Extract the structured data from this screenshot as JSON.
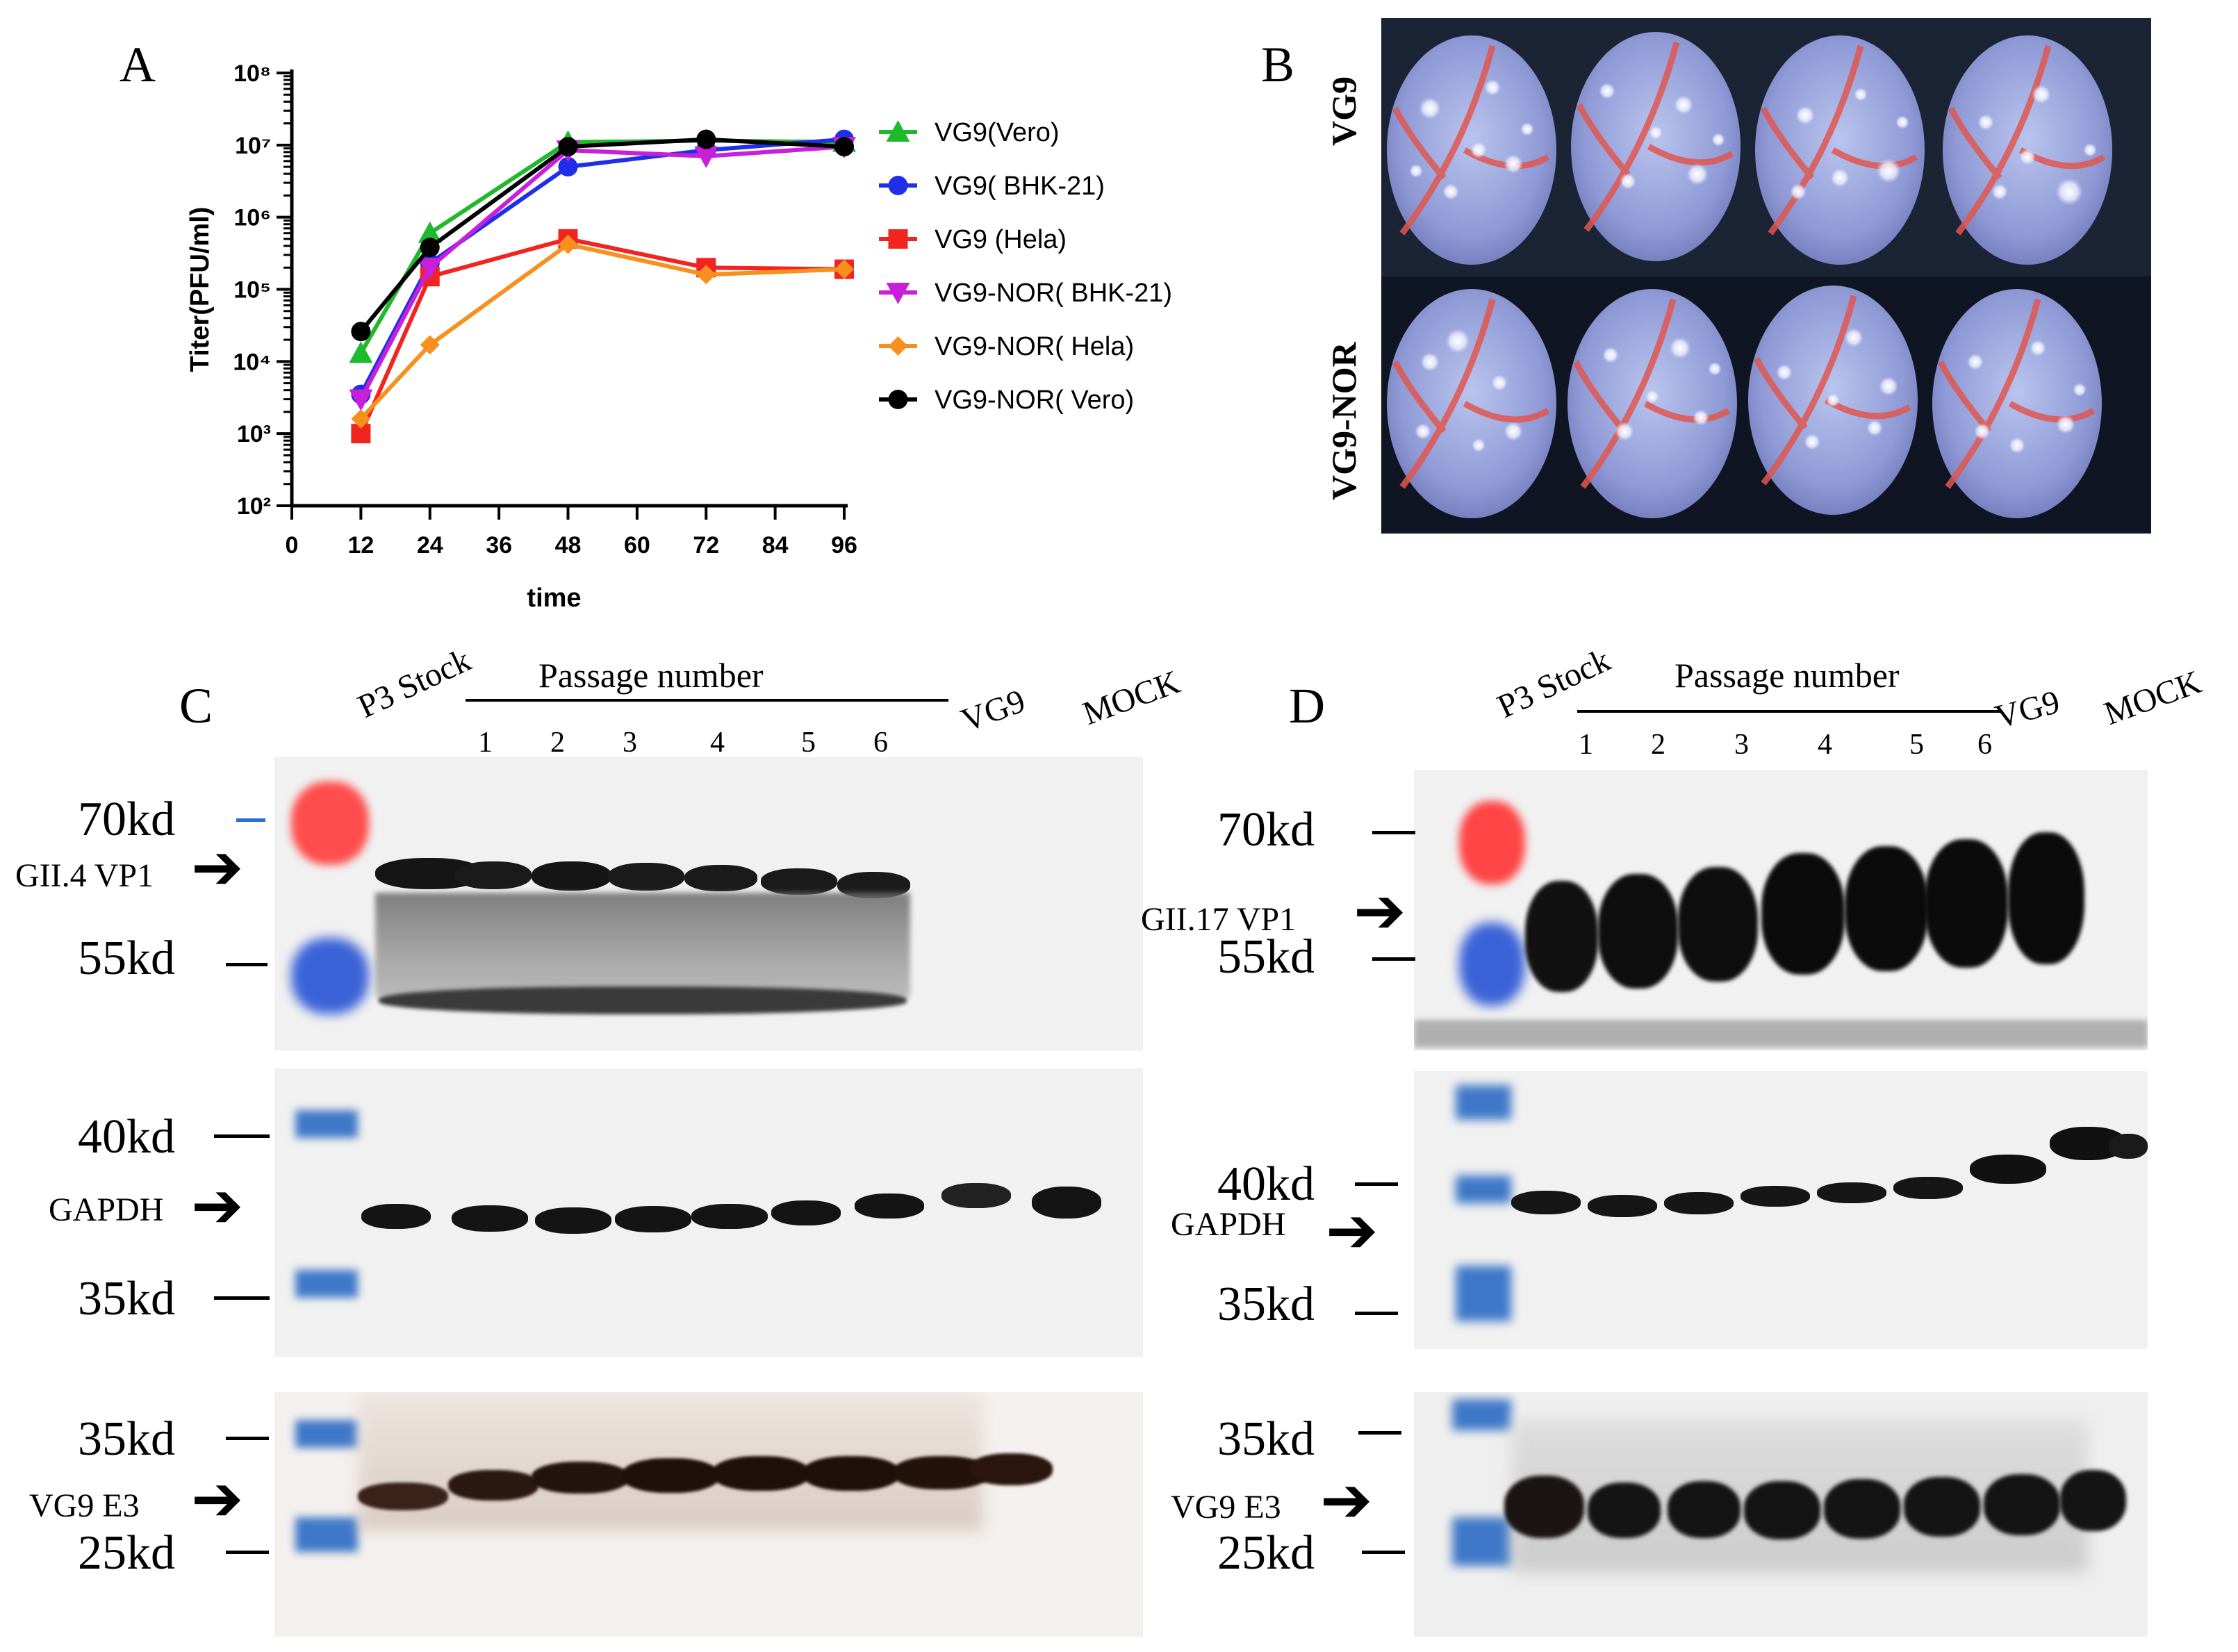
{
  "panels": {
    "a_label": "A",
    "b_label": "B",
    "c_label": "C",
    "d_label": "D"
  },
  "chart_data": {
    "type": "line",
    "title": "",
    "xlabel": "time",
    "ylabel": "Titer(PFU/ml)",
    "x_ticks": [
      "0",
      "12",
      "24",
      "36",
      "48",
      "60",
      "72",
      "84",
      "96"
    ],
    "y_ticks": [
      "10²",
      "10³",
      "10⁴",
      "10⁵",
      "10⁶",
      "10⁷",
      "10⁸"
    ],
    "y_scale": "log",
    "ylim": [
      100,
      100000000
    ],
    "xlim": [
      0,
      96
    ],
    "x": [
      12,
      24,
      48,
      72,
      96
    ],
    "legend_position": "right",
    "series": [
      {
        "name": "VG9(Vero)",
        "color": "#1fba2c",
        "marker": "triangle-up",
        "values": [
          13000,
          600000,
          11000000,
          11500000,
          11000000
        ]
      },
      {
        "name": "VG9( BHK-21)",
        "color": "#1f2fe8",
        "marker": "circle",
        "values": [
          3500,
          230000,
          5000000,
          8500000,
          12000000
        ]
      },
      {
        "name": "VG9 (Hela)",
        "color": "#f2241f",
        "marker": "square",
        "values": [
          1000,
          150000,
          500000,
          200000,
          190000
        ]
      },
      {
        "name": "VG9-NOR( BHK-21)",
        "color": "#c81fd8",
        "marker": "triangle-down",
        "values": [
          3000,
          200000,
          8500000,
          7000000,
          9500000
        ]
      },
      {
        "name": "VG9-NOR( Hela)",
        "color": "#f7901e",
        "marker": "diamond",
        "values": [
          1600,
          17000,
          420000,
          160000,
          190000
        ]
      },
      {
        "name": "VG9-NOR( Vero)",
        "color": "#000000",
        "marker": "circle",
        "values": [
          26000,
          380000,
          9500000,
          12000000,
          9500000
        ]
      }
    ]
  },
  "panel_b": {
    "row_labels": [
      "VG9",
      "VG9-NOR"
    ]
  },
  "panel_c": {
    "header": {
      "p3_stock": "P3 Stock",
      "passage_number": "Passage number",
      "lanes": [
        "1",
        "2",
        "3",
        "4",
        "5",
        "6"
      ],
      "vg9": "VG9",
      "mock": "MOCK"
    },
    "blot1": {
      "marker_top": "70kd",
      "marker_bottom": "55kd",
      "target": "GII.4 VP1"
    },
    "blot2": {
      "marker_top": "40kd",
      "marker_bottom": "35kd",
      "target": "GAPDH"
    },
    "blot3": {
      "marker_top": "35kd",
      "marker_bottom": "25kd",
      "target": "VG9 E3"
    }
  },
  "panel_d": {
    "header": {
      "p3_stock": "P3 Stock",
      "passage_number": "Passage number",
      "lanes": [
        "1",
        "2",
        "3",
        "4",
        "5",
        "6"
      ],
      "vg9": "VG9",
      "mock": "MOCK"
    },
    "blot1": {
      "marker_top": "70kd",
      "marker_bottom": "55kd",
      "target": "GII.17 VP1"
    },
    "blot2": {
      "marker_top": "40kd",
      "marker_bottom": "35kd",
      "target": "GAPDH"
    },
    "blot3": {
      "marker_top": "35kd",
      "marker_bottom": "25kd",
      "target": "VG9 E3"
    }
  }
}
